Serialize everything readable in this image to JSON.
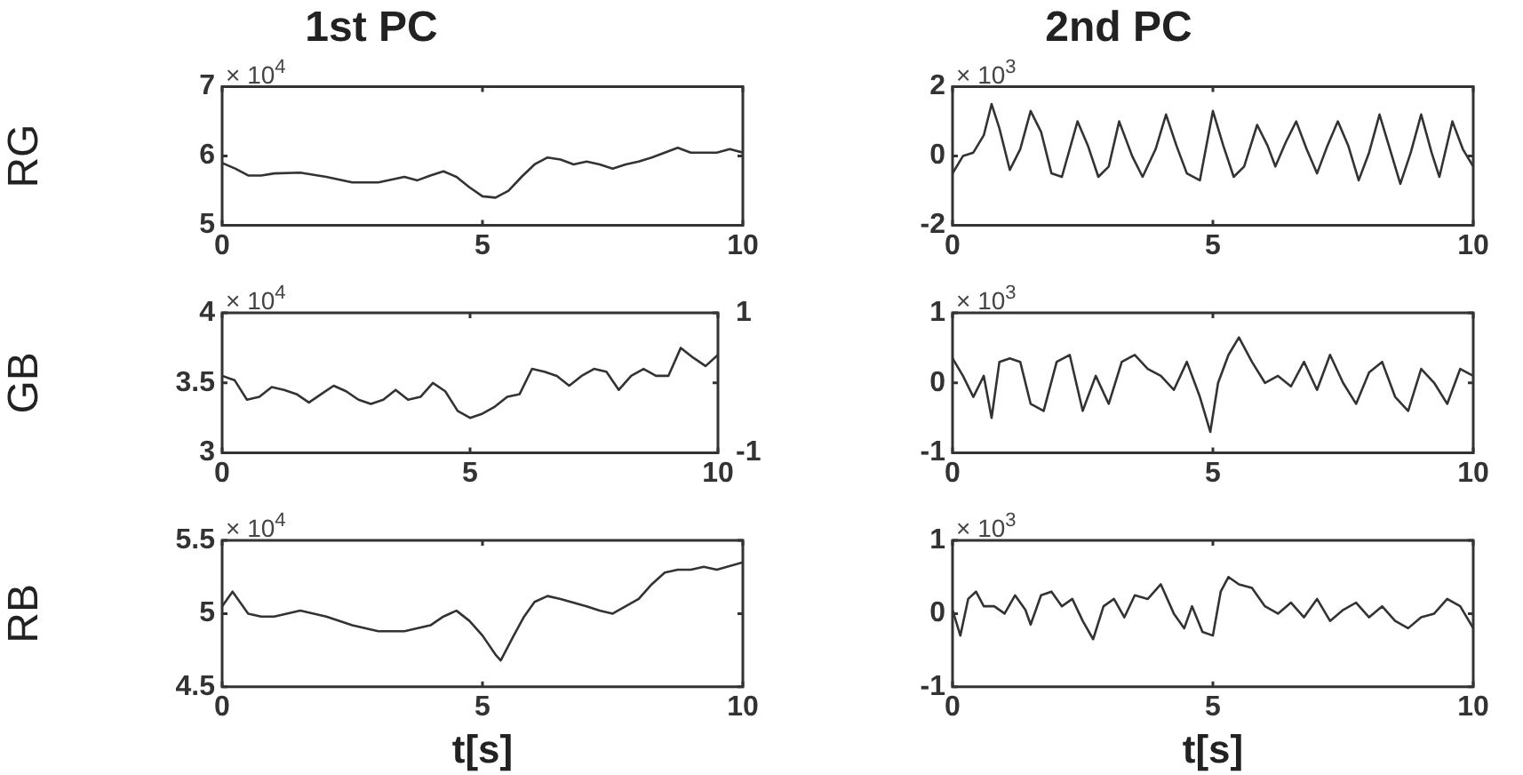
{
  "chart_data": [
    {
      "type": "line",
      "title": "1st PC",
      "ylabel": "RG",
      "xlim": [
        0,
        10
      ],
      "xticks": [
        0,
        5,
        10
      ],
      "ylim": [
        5,
        7
      ],
      "yticks": [
        5,
        6,
        7
      ],
      "annotations": [
        "× 10$^{4}$"
      ],
      "x": [
        0,
        0.25,
        0.5,
        0.75,
        1,
        1.5,
        2,
        2.5,
        3,
        3.5,
        3.75,
        4,
        4.25,
        4.5,
        4.75,
        5,
        5.25,
        5.5,
        5.75,
        6,
        6.25,
        6.5,
        6.75,
        7,
        7.25,
        7.5,
        7.75,
        8,
        8.25,
        8.5,
        8.75,
        9,
        9.25,
        9.5,
        9.75,
        10
      ],
      "series": [
        {
          "color": "#333333",
          "values": [
            5.9,
            5.82,
            5.72,
            5.72,
            5.75,
            5.76,
            5.7,
            5.62,
            5.62,
            5.7,
            5.65,
            5.72,
            5.78,
            5.7,
            5.55,
            5.42,
            5.4,
            5.5,
            5.7,
            5.88,
            5.98,
            5.95,
            5.88,
            5.92,
            5.88,
            5.82,
            5.88,
            5.92,
            5.98,
            6.05,
            6.12,
            6.05,
            6.05,
            6.05,
            6.1,
            6.05
          ]
        }
      ]
    },
    {
      "type": "line",
      "title": "2nd PC",
      "xlim": [
        0,
        10
      ],
      "xticks": [
        0,
        5,
        10
      ],
      "ylim": [
        -2,
        2
      ],
      "yticks": [
        -2,
        0,
        2
      ],
      "annotations": [
        "× 10$^{3}$"
      ],
      "x": [
        0,
        0.2,
        0.4,
        0.6,
        0.75,
        0.9,
        1.1,
        1.3,
        1.5,
        1.7,
        1.9,
        2.1,
        2.4,
        2.6,
        2.8,
        3,
        3.2,
        3.45,
        3.65,
        3.9,
        4.1,
        4.3,
        4.5,
        4.75,
        5,
        5.2,
        5.4,
        5.6,
        5.85,
        6.05,
        6.2,
        6.4,
        6.6,
        6.8,
        7,
        7.2,
        7.4,
        7.6,
        7.8,
        8,
        8.2,
        8.4,
        8.6,
        8.8,
        9,
        9.2,
        9.35,
        9.6,
        9.8,
        10
      ],
      "series": [
        {
          "color": "#333333",
          "values": [
            -0.5,
            0,
            0.1,
            0.6,
            1.5,
            0.8,
            -0.4,
            0.2,
            1.3,
            0.7,
            -0.5,
            -0.6,
            1,
            0.3,
            -0.6,
            -0.3,
            1,
            0,
            -0.6,
            0.2,
            1.2,
            0.3,
            -0.5,
            -0.7,
            1.3,
            0.3,
            -0.6,
            -0.3,
            0.9,
            0.3,
            -0.3,
            0.4,
            1,
            0.2,
            -0.5,
            0.3,
            1,
            0.3,
            -0.7,
            0.1,
            1.2,
            0.2,
            -0.8,
            0.1,
            1.2,
            0.1,
            -0.6,
            1,
            0.2,
            -0.3
          ]
        }
      ]
    },
    {
      "type": "line",
      "ylabel": "GB",
      "xlim": [
        0,
        10
      ],
      "xticks": [
        0,
        5,
        10
      ],
      "ylim": [
        3,
        4
      ],
      "yticks": [
        3,
        3.5,
        4
      ],
      "y2lim": [
        -1,
        1
      ],
      "y2ticks": [
        -1,
        1
      ],
      "annotations": [
        "× 10$^{4}$"
      ],
      "x": [
        0,
        0.25,
        0.5,
        0.75,
        1,
        1.25,
        1.5,
        1.75,
        2,
        2.25,
        2.5,
        2.75,
        3,
        3.25,
        3.5,
        3.75,
        4,
        4.25,
        4.5,
        4.75,
        5,
        5.25,
        5.5,
        5.75,
        6,
        6.25,
        6.5,
        6.75,
        7,
        7.25,
        7.5,
        7.75,
        8,
        8.25,
        8.5,
        8.75,
        9,
        9.25,
        9.5,
        9.75,
        10
      ],
      "series": [
        {
          "color": "#333333",
          "values": [
            3.55,
            3.52,
            3.38,
            3.4,
            3.47,
            3.45,
            3.42,
            3.36,
            3.42,
            3.48,
            3.44,
            3.38,
            3.35,
            3.38,
            3.45,
            3.38,
            3.4,
            3.5,
            3.44,
            3.3,
            3.25,
            3.28,
            3.33,
            3.4,
            3.42,
            3.6,
            3.58,
            3.55,
            3.48,
            3.55,
            3.6,
            3.58,
            3.45,
            3.55,
            3.6,
            3.55,
            3.55,
            3.75,
            3.68,
            3.62,
            3.7
          ]
        }
      ]
    },
    {
      "type": "line",
      "xlim": [
        0,
        10
      ],
      "xticks": [
        0,
        5,
        10
      ],
      "ylim": [
        -1,
        1
      ],
      "yticks": [
        -1,
        0,
        1
      ],
      "annotations": [
        "× 10$^{3}$"
      ],
      "x": [
        0,
        0.2,
        0.4,
        0.6,
        0.75,
        0.9,
        1.1,
        1.3,
        1.5,
        1.75,
        2,
        2.25,
        2.5,
        2.75,
        3,
        3.25,
        3.5,
        3.75,
        4,
        4.25,
        4.5,
        4.75,
        4.95,
        5.1,
        5.3,
        5.5,
        5.75,
        6,
        6.25,
        6.5,
        6.75,
        7,
        7.25,
        7.5,
        7.75,
        8,
        8.25,
        8.5,
        8.75,
        9,
        9.25,
        9.5,
        9.75,
        10
      ],
      "series": [
        {
          "color": "#333333",
          "values": [
            0.35,
            0.1,
            -0.2,
            0.1,
            -0.5,
            0.3,
            0.35,
            0.3,
            -0.3,
            -0.4,
            0.3,
            0.4,
            -0.4,
            0.1,
            -0.3,
            0.3,
            0.4,
            0.2,
            0.1,
            -0.1,
            0.3,
            -0.2,
            -0.7,
            0,
            0.4,
            0.65,
            0.3,
            0,
            0.1,
            -0.05,
            0.3,
            -0.1,
            0.4,
            0,
            -0.3,
            0.15,
            0.3,
            -0.2,
            -0.4,
            0.2,
            0,
            -0.3,
            0.2,
            0.1
          ]
        }
      ]
    },
    {
      "type": "line",
      "ylabel": "RB",
      "xlabel": "t[s]",
      "xlim": [
        0,
        10
      ],
      "xticks": [
        0,
        5,
        10
      ],
      "ylim": [
        4.5,
        5.5
      ],
      "yticks": [
        4.5,
        5,
        5.5
      ],
      "annotations": [
        "× 10$^{4}$"
      ],
      "x": [
        0,
        0.2,
        0.5,
        0.75,
        1,
        1.5,
        2,
        2.5,
        3,
        3.5,
        4,
        4.25,
        4.5,
        4.75,
        5,
        5.25,
        5.35,
        5.6,
        5.8,
        6,
        6.25,
        6.5,
        7,
        7.25,
        7.5,
        7.75,
        8,
        8.25,
        8.5,
        8.75,
        9,
        9.25,
        9.5,
        10
      ],
      "series": [
        {
          "color": "#333333",
          "values": [
            5.05,
            5.15,
            5,
            4.98,
            4.98,
            5.02,
            4.98,
            4.92,
            4.88,
            4.88,
            4.92,
            4.98,
            5.02,
            4.95,
            4.85,
            4.72,
            4.68,
            4.85,
            4.98,
            5.08,
            5.12,
            5.1,
            5.05,
            5.02,
            5,
            5.05,
            5.1,
            5.2,
            5.28,
            5.3,
            5.3,
            5.32,
            5.3,
            5.35
          ]
        }
      ]
    },
    {
      "type": "line",
      "xlabel": "t[s]",
      "xlim": [
        0,
        10
      ],
      "xticks": [
        0,
        5,
        10
      ],
      "ylim": [
        -1,
        1
      ],
      "yticks": [
        -1,
        0,
        1
      ],
      "annotations": [
        "× 10$^{3}$"
      ],
      "x": [
        0,
        0.15,
        0.3,
        0.45,
        0.6,
        0.8,
        1,
        1.2,
        1.4,
        1.5,
        1.7,
        1.9,
        2.1,
        2.3,
        2.5,
        2.7,
        2.9,
        3.1,
        3.3,
        3.5,
        3.75,
        4,
        4.25,
        4.45,
        4.6,
        4.8,
        5,
        5.15,
        5.3,
        5.5,
        5.75,
        6,
        6.25,
        6.5,
        6.75,
        7,
        7.25,
        7.5,
        7.75,
        8,
        8.25,
        8.5,
        8.75,
        9,
        9.25,
        9.5,
        9.75,
        10
      ],
      "series": [
        {
          "color": "#333333",
          "values": [
            0.05,
            -0.3,
            0.2,
            0.3,
            0.1,
            0.1,
            0,
            0.25,
            0.05,
            -0.15,
            0.25,
            0.3,
            0.1,
            0.2,
            -0.1,
            -0.35,
            0.1,
            0.2,
            -0.05,
            0.25,
            0.2,
            0.4,
            0,
            -0.2,
            0.1,
            -0.25,
            -0.3,
            0.3,
            0.5,
            0.4,
            0.35,
            0.1,
            0,
            0.15,
            -0.05,
            0.2,
            -0.1,
            0.05,
            0.15,
            -0.05,
            0.1,
            -0.1,
            -0.2,
            -0.05,
            0,
            0.2,
            0.1,
            -0.2
          ]
        }
      ]
    }
  ]
}
